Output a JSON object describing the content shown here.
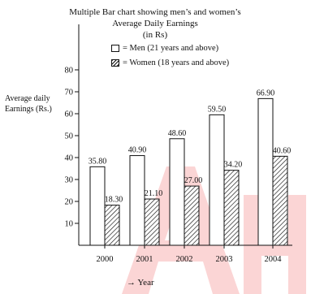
{
  "chart_data": {
    "type": "bar",
    "title_lines": [
      "Multiple Bar chart showing men’s and women’s",
      "Average Daily Earnings",
      "(in Rs)"
    ],
    "ylabel_lines": [
      "Average daily",
      "Earnings (Rs.)"
    ],
    "xlabel": "→ Year",
    "categories": [
      "2000",
      "2001",
      "2002",
      "2003",
      "2004"
    ],
    "series": [
      {
        "name": "= Men (21 years and above)",
        "values": [
          35.8,
          40.9,
          48.6,
          59.5,
          66.9
        ],
        "labels": [
          "35.80",
          "40.90",
          "48.60",
          "59.50",
          "66.90"
        ],
        "fill": "plain"
      },
      {
        "name": "= Women (18 years and above)",
        "values": [
          18.3,
          21.1,
          27.0,
          34.2,
          40.6
        ],
        "labels": [
          "18.30",
          "21.10",
          "27.00",
          "34.20",
          "40.60"
        ],
        "fill": "hatched"
      }
    ],
    "yticks": [
      10,
      20,
      30,
      40,
      50,
      60,
      70,
      80
    ],
    "ylim": [
      0,
      80
    ],
    "grid": false,
    "legend_position": "top-center"
  },
  "colors": {
    "ink": "#111111",
    "watermark": "#f26b6b"
  }
}
